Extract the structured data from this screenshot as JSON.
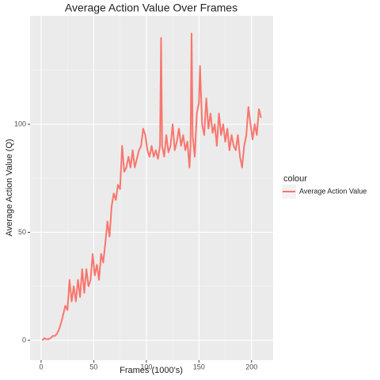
{
  "chart_data": {
    "type": "line",
    "title": "Average Action Value Over Frames",
    "x_label": "Frames (1000's)",
    "y_label": "Average Action Value (Q)",
    "legend_title": "colour",
    "x": [
      1,
      3,
      5,
      7,
      9,
      11,
      13,
      15,
      17,
      19,
      21,
      23,
      25,
      27,
      29,
      31,
      33,
      35,
      37,
      39,
      41,
      43,
      45,
      47,
      49,
      51,
      53,
      55,
      57,
      59,
      61,
      63,
      65,
      67,
      69,
      71,
      73,
      75,
      77,
      79,
      81,
      83,
      85,
      87,
      89,
      91,
      93,
      95,
      97,
      99,
      101,
      103,
      105,
      107,
      109,
      111,
      113,
      114,
      115,
      117,
      119,
      121,
      123,
      125,
      127,
      129,
      131,
      133,
      135,
      137,
      139,
      141,
      142,
      143,
      144,
      146,
      148,
      150,
      151,
      153,
      155,
      157,
      159,
      161,
      163,
      165,
      167,
      169,
      171,
      173,
      175,
      177,
      179,
      181,
      183,
      185,
      187,
      189,
      191,
      193,
      195,
      197,
      199,
      201,
      203,
      205,
      207,
      209
    ],
    "series": [
      {
        "name": "Average Action Value",
        "color": "#f8766d",
        "values": [
          0,
          1,
          0.5,
          0.5,
          1,
          2,
          2,
          3,
          5,
          8,
          12,
          16,
          14,
          28,
          18,
          25,
          18,
          28,
          20,
          33,
          22,
          33,
          25,
          28,
          40,
          30,
          35,
          28,
          40,
          36,
          45,
          55,
          48,
          62,
          68,
          65,
          72,
          70,
          90,
          78,
          80,
          85,
          80,
          88,
          80,
          84,
          88,
          90,
          98,
          95,
          88,
          85,
          90,
          85,
          88,
          84,
          90,
          140,
          90,
          85,
          95,
          87,
          90,
          100,
          88,
          92,
          98,
          90,
          95,
          88,
          92,
          80,
          90,
          142,
          95,
          85,
          105,
          110,
          127,
          100,
          95,
          112,
          98,
          105,
          96,
          100,
          90,
          105,
          95,
          100,
          92,
          98,
          88,
          95,
          90,
          88,
          95,
          85,
          80,
          90,
          95,
          108,
          100,
          93,
          100,
          95,
          107,
          103
        ]
      }
    ],
    "xlim": [
      -10.5,
      220.5
    ],
    "ylim": [
      -9.2,
      150.2
    ],
    "xticks": [
      0,
      50,
      100,
      150,
      200
    ],
    "yticks": [
      0,
      50,
      100
    ],
    "x_minor_ticks": [
      25,
      75,
      125,
      175
    ],
    "y_minor_ticks": [
      25,
      75,
      125
    ],
    "grid": true,
    "legend": "right"
  }
}
